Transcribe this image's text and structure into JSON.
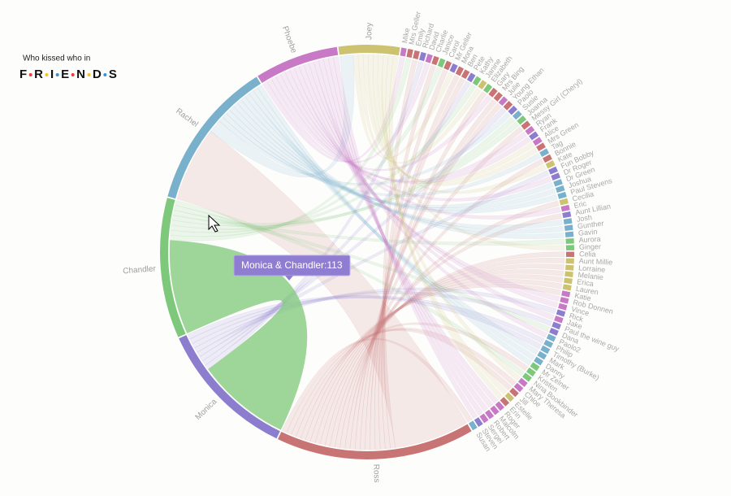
{
  "chart_data": {
    "type": "chord",
    "title": "Who kissed who in",
    "logo": "FRIENDS",
    "nodes": [
      "Joey",
      "Mike",
      "Mrs Geller",
      "Emily",
      "Richard",
      "David",
      "Charlie",
      "Janice",
      "Carol",
      "Mr Geller",
      "Mona",
      "Ben",
      "Pete",
      "Kathy",
      "Janine",
      "Elizabeth",
      "Gary",
      "Mrs Bing",
      "Julie",
      "Young Ethan",
      "Paolo",
      "Susie",
      "Joanna",
      "Messy Girl (Cheryl)",
      "Ryan",
      "Frank",
      "Alice",
      "Mrs Green",
      "Tag",
      "Bonnie",
      "Kate",
      "Fun Bobby",
      "Dr Roger",
      "Dr Green",
      "Joshua",
      "Paul Stevens",
      "Cecilia",
      "Eric",
      "Aunt Lillian",
      "Josh",
      "Gunther",
      "Gavin",
      "Aurora",
      "Ginger",
      "Celia",
      "Aunt Millie",
      "Lorraine",
      "Melanie",
      "Erica",
      "Lauren",
      "Katie",
      "Rob Donnen",
      "Vince",
      "Rick",
      "Jake",
      "Paul the wine guy",
      "Dana",
      "Paolo2",
      "Philip",
      "Timothy (Burke)",
      "Mark",
      "Danny",
      "Mr Zelner",
      "Kristen",
      "Nina Bookbinder",
      "Mary Theresa",
      "Chloe",
      "Jill",
      "Estelle",
      "Erin",
      "Roger",
      "Malcolm",
      "Robert",
      "Sergei",
      "Steven",
      "Susan",
      "Ross",
      "Monica",
      "Chandler",
      "Rachel",
      "Phoebe"
    ],
    "colors": [
      "#cdc270",
      "#c879c6",
      "#c97474",
      "#c97474",
      "#8c7dcf",
      "#c879c6",
      "#c97474",
      "#7dc87a",
      "#c97474",
      "#8c7dcf",
      "#c97474",
      "#c97474",
      "#8c7dcf",
      "#7dc87a",
      "#cdc270",
      "#7dc87a",
      "#c97474",
      "#c97474",
      "#c879c6",
      "#c97474",
      "#8c7dcf",
      "#79b0cc",
      "#7dc87a",
      "#c97474",
      "#c879c6",
      "#8c7dcf",
      "#c879c6",
      "#c97474",
      "#79b0cc",
      "#c97474",
      "#cdc270",
      "#8c7dcf",
      "#8c7dcf",
      "#79b0cc",
      "#79b0cc",
      "#79b0cc",
      "#cdc270",
      "#c879c6",
      "#8c7dcf",
      "#79b0cc",
      "#79b0cc",
      "#79b0cc",
      "#7dc87a",
      "#7dc87a",
      "#c97474",
      "#cdc270",
      "#cdc270",
      "#cdc270",
      "#cdc270",
      "#cdc270",
      "#c879c6",
      "#c879c6",
      "#c879c6",
      "#8c7dcf",
      "#c879c6",
      "#8c7dcf",
      "#8c7dcf",
      "#79b0cc",
      "#79b0cc",
      "#79b0cc",
      "#79b0cc",
      "#79b0cc",
      "#7dc87a",
      "#7dc87a",
      "#7dc87a",
      "#c879c6",
      "#c879c6",
      "#c97474",
      "#cdc270",
      "#c97474",
      "#c879c6",
      "#c879c6",
      "#c879c6",
      "#c879c6",
      "#8c7dcf",
      "#79b0cc",
      "#c97474",
      "#8c7dcf",
      "#7dc87a",
      "#79b0cc",
      "#c879c6"
    ],
    "links": {
      "source": [
        "Monica",
        "Ross",
        "Joey",
        "Mike",
        "Mrs Geller",
        "Emily",
        "Richard",
        "David",
        "Charlie",
        "Janice",
        "Carol",
        "Mr Geller",
        "Mona",
        "Ben",
        "Pete",
        "Kathy",
        "Janine",
        "Elizabeth",
        "Gary",
        "Mrs Bing",
        "Julie",
        "Young Ethan",
        "Paolo",
        "Susie",
        "Joanna",
        "Messy Girl (Cheryl)",
        "Ryan",
        "Frank",
        "Alice",
        "Mrs Green",
        "Tag",
        "Bonnie",
        "Kate",
        "Fun Bobby",
        "Dr Roger",
        "Dr Green",
        "Joshua",
        "Paul Stevens",
        "Cecilia",
        "Eric",
        "Aunt Lillian",
        "Josh",
        "Gunther",
        "Gavin",
        "Aurora",
        "Ginger",
        "Celia",
        "Aunt Millie",
        "Lorraine",
        "Melanie",
        "Erica",
        "Lauren",
        "Katie",
        "Rob Donnen",
        "Vince",
        "Rick",
        "Jake",
        "Paul the wine guy",
        "Dana",
        "Paolo2",
        "Philip",
        "Timothy (Burke)",
        "Mark",
        "Danny",
        "Mr Zelner",
        "Kristen",
        "Nina Bookbinder",
        "Mary Theresa",
        "Chloe",
        "Jill",
        "Estelle",
        "Erin",
        "Roger",
        "Malcolm",
        "Robert",
        "Sergei",
        "Steven",
        "Susan"
      ],
      "target": [
        "Chandler",
        "Rachel",
        "Rachel",
        "Phoebe",
        "Chandler",
        "Ross",
        "Monica",
        "Phoebe",
        "Ross",
        "Chandler",
        "Ross",
        "Joey",
        "Ross",
        "Ross",
        "Monica",
        "Chandler",
        "Joey",
        "Ross",
        "Phoebe",
        "Ross",
        "Ross",
        "Monica",
        "Rachel",
        "Chandler",
        "Chandler",
        "Ross",
        "Phoebe",
        "Phoebe",
        "Joey",
        "Joey",
        "Rachel",
        "Ross",
        "Joey",
        "Monica",
        "Phoebe",
        "Rachel",
        "Rachel",
        "Rachel",
        "Ross",
        "Phoebe",
        "Ross",
        "Rachel",
        "Rachel",
        "Rachel",
        "Chandler",
        "Joey",
        "Ross",
        "Ross",
        "Ross",
        "Ross",
        "Ross",
        "Ross",
        "Ross",
        "Phoebe",
        "Phoebe",
        "Monica",
        "Phoebe",
        "Monica",
        "Chandler",
        "Phoebe",
        "Monica",
        "Monica",
        "Rachel",
        "Rachel",
        "Rachel",
        "Ross",
        "Chandler",
        "Joey",
        "Ross",
        "Ross",
        "Joey",
        "Joey",
        "Phoebe",
        "Phoebe",
        "Phoebe",
        "Phoebe",
        "Phoebe",
        "Ross"
      ],
      "values": [
        113,
        90,
        16,
        6,
        6,
        6,
        6,
        6,
        6,
        6,
        6,
        6,
        6,
        6,
        6,
        6,
        6,
        6,
        6,
        6,
        6,
        6,
        6,
        6,
        6,
        6,
        6,
        6,
        6,
        6,
        6,
        6,
        6,
        6,
        6,
        6,
        6,
        6,
        6,
        6,
        6,
        6,
        6,
        6,
        6,
        6,
        6,
        6,
        6,
        6,
        6,
        6,
        6,
        6,
        6,
        6,
        6,
        6,
        6,
        6,
        6,
        6,
        6,
        6,
        6,
        6,
        6,
        6,
        6,
        6,
        6,
        6,
        6,
        6,
        6,
        6,
        6,
        6
      ],
      "value_labels": [
        "Monica & Chandler:113",
        null,
        null,
        null,
        null,
        null,
        null,
        null,
        null,
        null,
        null,
        null,
        null,
        null,
        null,
        null,
        null,
        null,
        null,
        null,
        null,
        null,
        null,
        null,
        null,
        null,
        null,
        null,
        null,
        null,
        null,
        null,
        null,
        null,
        null,
        null,
        null,
        null,
        null,
        null,
        null,
        null,
        null,
        null,
        null,
        null,
        null,
        null,
        null,
        null,
        null,
        null,
        null,
        null,
        null,
        null,
        null,
        null,
        null,
        null,
        null,
        null,
        null,
        null,
        null,
        null,
        null,
        null,
        null,
        null,
        null,
        null,
        null,
        null,
        null,
        null,
        null,
        null
      ]
    }
  }
}
